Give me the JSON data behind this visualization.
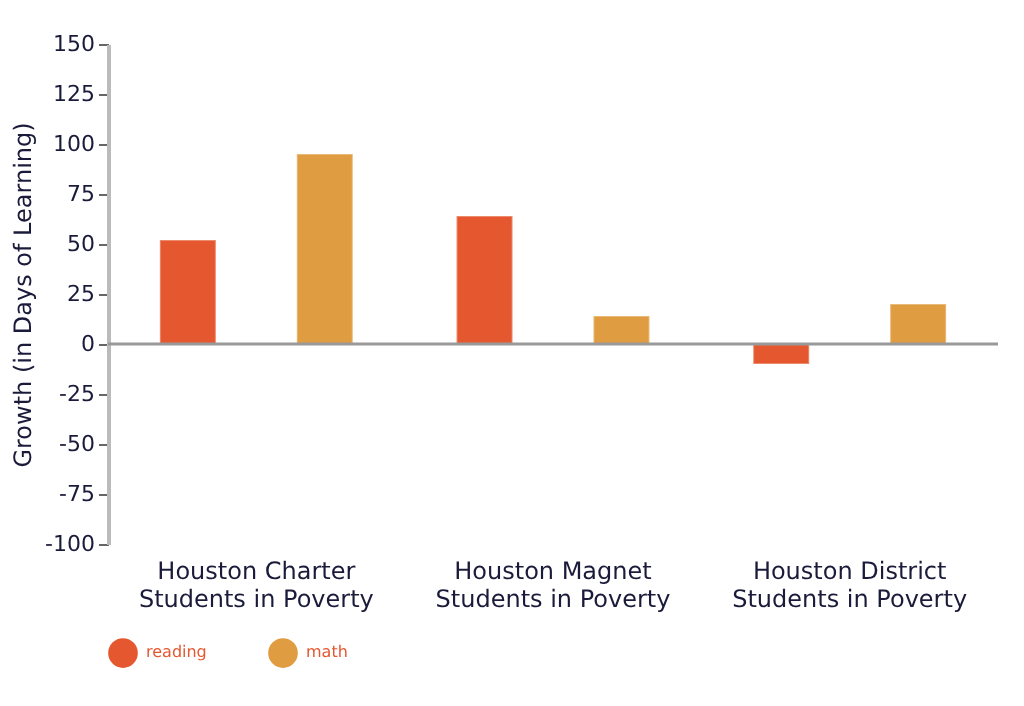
{
  "chart_data": {
    "type": "bar",
    "ylabel": "Growth (in Days of Learning)",
    "categories": [
      "Houston Charter Students in Poverty",
      "Houston Magnet Students in Poverty",
      "Houston District Students in Poverty"
    ],
    "series": [
      {
        "name": "reading",
        "color": "#e5572f",
        "values": [
          52,
          64,
          -10
        ]
      },
      {
        "name": "math",
        "color": "#e09c40",
        "values": [
          95,
          14,
          20
        ]
      }
    ],
    "ylim": [
      -100,
      150
    ],
    "yticks": [
      -100,
      -75,
      -50,
      -25,
      0,
      25,
      50,
      75,
      100,
      125,
      150
    ],
    "ref_lines": [
      {
        "axis": "y",
        "value": 0,
        "color": "#999999"
      }
    ],
    "grid": false,
    "legend": "bottom left"
  }
}
